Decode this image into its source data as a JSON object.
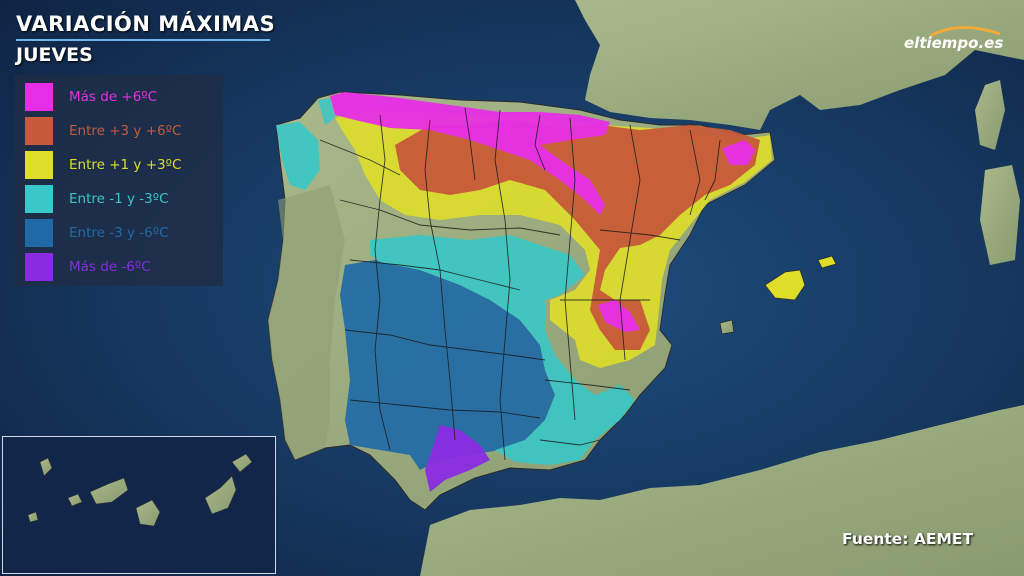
{
  "header": {
    "title": "VARIACIÓN MÁXIMAS",
    "subtitle": "JUEVES"
  },
  "legend": {
    "items": [
      {
        "label": "Más de +6ºC",
        "color": "#e62ee6"
      },
      {
        "label": "Entre +3 y +6ºC",
        "color": "#c65a3a"
      },
      {
        "label": "Entre +1 y +3ºC",
        "color": "#dede2a"
      },
      {
        "label": "Entre -1 y -3ºC",
        "color": "#39c7c7"
      },
      {
        "label": "Entre -3 y -6ºC",
        "color": "#1f6aa6"
      },
      {
        "label": "Más de -6ºC",
        "color": "#8a2be2"
      }
    ]
  },
  "brand": {
    "logo_text": "eltiempo.es"
  },
  "footer": {
    "source": "Fuente: AEMET"
  },
  "colors": {
    "sea": "#173358",
    "land": "#9aab7e",
    "border": "#1a1a1a"
  }
}
